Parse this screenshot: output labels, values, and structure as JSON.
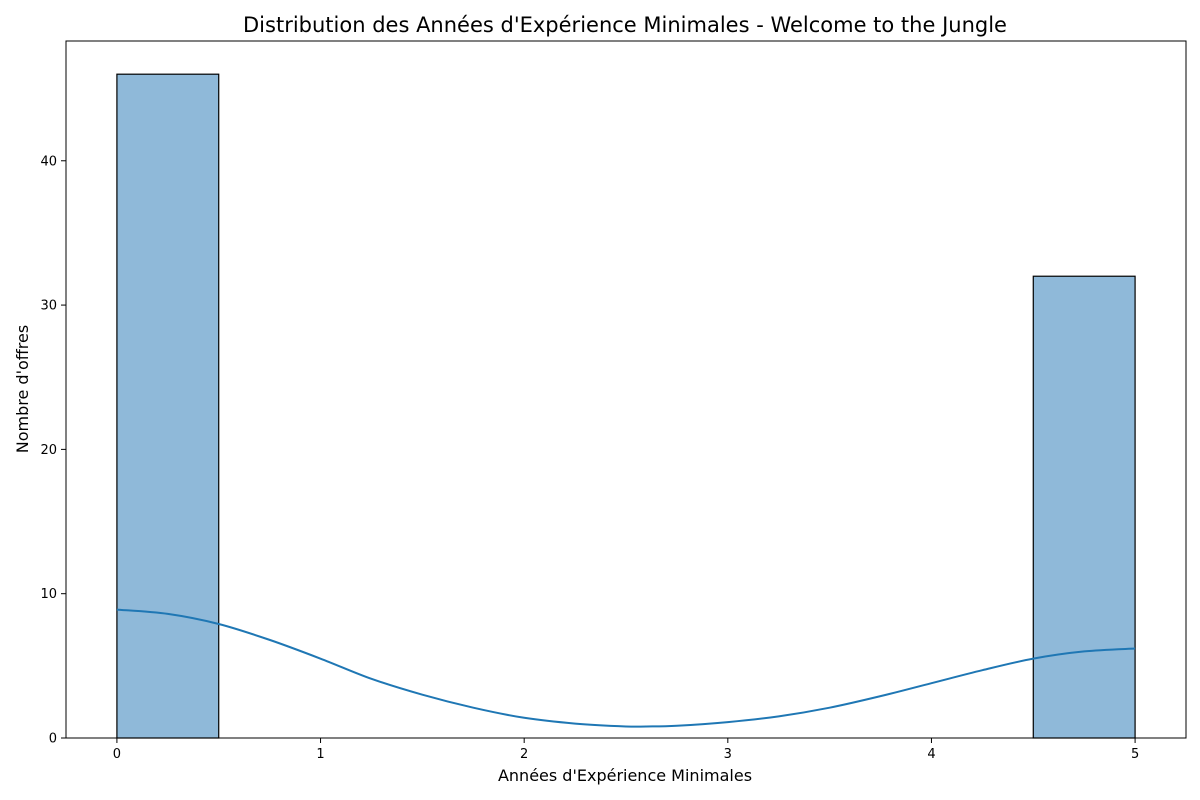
{
  "chart_data": {
    "type": "bar",
    "title": "Distribution des Années d'Expérience Minimales - Welcome to the Jungle",
    "xlabel": "Années d'Expérience Minimales",
    "ylabel": "Nombre d'offres",
    "xlim": [
      -0.25,
      5.25
    ],
    "ylim": [
      0,
      48.3
    ],
    "xticks": [
      0,
      1,
      2,
      3,
      4,
      5
    ],
    "yticks": [
      0,
      10,
      20,
      30,
      40
    ],
    "bins": [
      {
        "x0": 0,
        "x1": 0.5,
        "count": 46
      },
      {
        "x0": 0.5,
        "x1": 1.0,
        "count": 0
      },
      {
        "x0": 1.0,
        "x1": 1.5,
        "count": 0
      },
      {
        "x0": 1.5,
        "x1": 2.0,
        "count": 0
      },
      {
        "x0": 2.0,
        "x1": 2.5,
        "count": 0
      },
      {
        "x0": 2.5,
        "x1": 3.0,
        "count": 0
      },
      {
        "x0": 3.0,
        "x1": 3.5,
        "count": 0
      },
      {
        "x0": 3.5,
        "x1": 4.0,
        "count": 0
      },
      {
        "x0": 4.0,
        "x1": 4.5,
        "count": 0
      },
      {
        "x0": 4.5,
        "x1": 5.0,
        "count": 32
      }
    ],
    "kde": {
      "x": [
        0,
        0.25,
        0.5,
        0.75,
        1.0,
        1.25,
        1.5,
        1.75,
        2.0,
        2.25,
        2.5,
        2.6,
        2.75,
        3.0,
        3.25,
        3.5,
        3.75,
        4.0,
        4.25,
        4.5,
        4.75,
        5.0
      ],
      "y": [
        8.9,
        8.6,
        7.9,
        6.8,
        5.5,
        4.1,
        3.0,
        2.1,
        1.4,
        1.0,
        0.8,
        0.8,
        0.85,
        1.1,
        1.5,
        2.1,
        2.9,
        3.8,
        4.7,
        5.5,
        6.0,
        6.2
      ]
    },
    "grid": false,
    "colors": {
      "bar_fill": "#8fb9d9",
      "bar_edge": "#000000",
      "kde_line": "#1f77b4"
    }
  }
}
